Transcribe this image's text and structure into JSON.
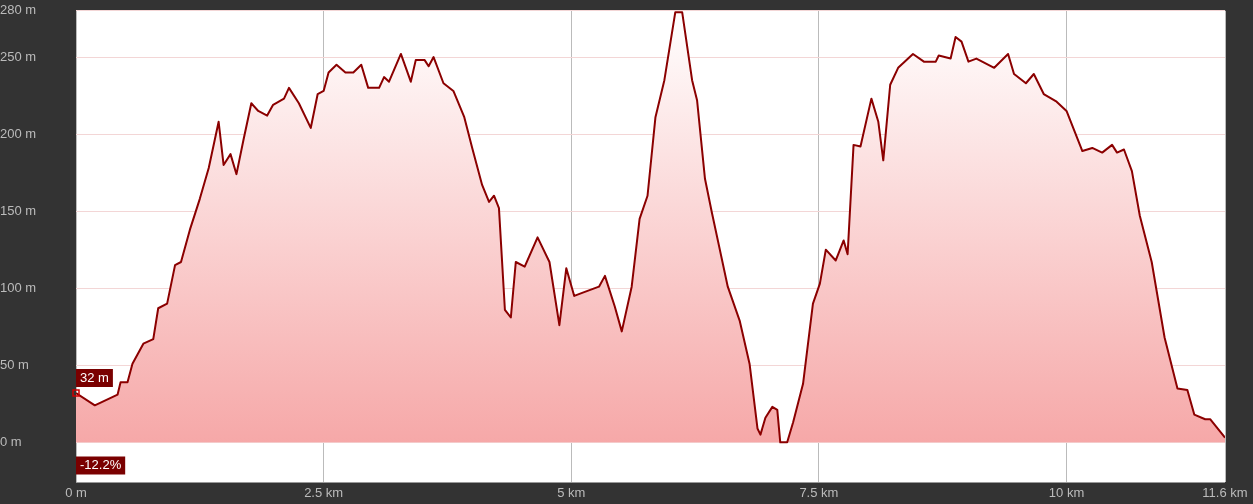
{
  "chart_data": {
    "type": "area",
    "x": [
      0,
      0.19,
      0.42,
      0.45,
      0.52,
      0.57,
      0.68,
      0.78,
      0.83,
      0.92,
      1.0,
      1.06,
      1.15,
      1.25,
      1.34,
      1.44,
      1.49,
      1.56,
      1.62,
      1.69,
      1.77,
      1.84,
      1.93,
      1.99,
      2.1,
      2.15,
      2.25,
      2.37,
      2.44,
      2.5,
      2.55,
      2.63,
      2.72,
      2.8,
      2.88,
      2.95,
      3.06,
      3.11,
      3.16,
      3.28,
      3.38,
      3.43,
      3.52,
      3.56,
      3.61,
      3.71,
      3.81,
      3.92,
      4.0,
      4.1,
      4.17,
      4.22,
      4.27,
      4.33,
      4.39,
      4.44,
      4.53,
      4.66,
      4.78,
      4.88,
      4.95,
      5.03,
      5.11,
      5.28,
      5.34,
      5.44,
      5.51,
      5.61,
      5.69,
      5.77,
      5.85,
      5.94,
      6.05,
      6.12,
      6.22,
      6.27,
      6.35,
      6.42,
      6.58,
      6.7,
      6.8,
      6.88,
      6.91,
      6.96,
      7.03,
      7.08,
      7.11,
      7.18,
      7.24,
      7.34,
      7.44,
      7.51,
      7.57,
      7.67,
      7.75,
      7.79,
      7.85,
      7.92,
      8.03,
      8.1,
      8.15,
      8.22,
      8.3,
      8.45,
      8.56,
      8.68,
      8.71,
      8.83,
      8.88,
      8.94,
      9.01,
      9.09,
      9.27,
      9.41,
      9.47,
      9.59,
      9.67,
      9.77,
      9.9,
      10.0,
      10.16,
      10.26,
      10.36,
      10.46,
      10.51,
      10.58,
      10.66,
      10.74,
      10.86,
      10.99,
      11.12,
      11.22,
      11.29,
      11.4,
      11.45,
      11.6
    ],
    "series": [
      {
        "color": "#8b0000",
        "values": [
          32,
          24,
          31,
          39,
          39,
          51,
          64,
          67,
          87,
          90,
          115,
          117,
          138,
          158,
          178,
          208,
          180,
          187,
          174,
          196,
          220,
          215,
          212,
          219,
          223,
          230,
          220,
          204,
          226,
          228,
          240,
          245,
          240,
          240,
          245,
          230,
          230,
          237,
          234,
          252,
          234,
          248,
          248,
          244,
          250,
          233,
          228,
          211,
          191,
          167,
          156,
          160,
          152,
          86,
          81,
          117,
          114,
          133,
          117,
          76,
          113,
          95,
          97,
          101,
          108,
          88,
          72,
          101,
          145,
          160,
          211,
          235,
          279,
          279,
          235,
          222,
          171,
          149,
          101,
          79,
          51,
          9,
          5,
          16,
          23,
          21,
          0,
          0,
          13,
          38,
          90,
          103,
          125,
          118,
          131,
          122,
          193,
          192,
          223,
          208,
          183,
          232,
          243,
          252,
          247,
          247,
          251,
          249,
          263,
          260,
          247,
          249,
          243,
          252,
          239,
          233,
          239,
          226,
          221,
          215,
          189,
          191,
          188,
          193,
          188,
          190,
          176,
          147,
          117,
          68,
          35,
          34,
          18,
          15,
          15,
          3
        ]
      }
    ],
    "xlim": [
      0,
      11.6
    ],
    "xticks": [
      {
        "value": 0,
        "label": "0 m"
      },
      {
        "value": 2.5,
        "label": "2.5 km"
      },
      {
        "value": 5,
        "label": "5 km"
      },
      {
        "value": 7.5,
        "label": "7.5 km"
      },
      {
        "value": 10,
        "label": "10 km"
      },
      {
        "value": 11.6,
        "label": "11.6 km"
      }
    ],
    "ylim": [
      -26,
      280
    ],
    "yticks": [
      {
        "value": 0,
        "label": "0 m"
      },
      {
        "value": 50,
        "label": "50 m"
      },
      {
        "value": 100,
        "label": "100 m"
      },
      {
        "value": 150,
        "label": "150 m"
      },
      {
        "value": 200,
        "label": "200 m"
      },
      {
        "value": 250,
        "label": "250 m"
      },
      {
        "value": 280,
        "label": "280 m"
      }
    ],
    "grid": true,
    "annotations": [
      {
        "text": "32 m",
        "x": 0,
        "y": 32
      },
      "-12.2%"
    ]
  }
}
